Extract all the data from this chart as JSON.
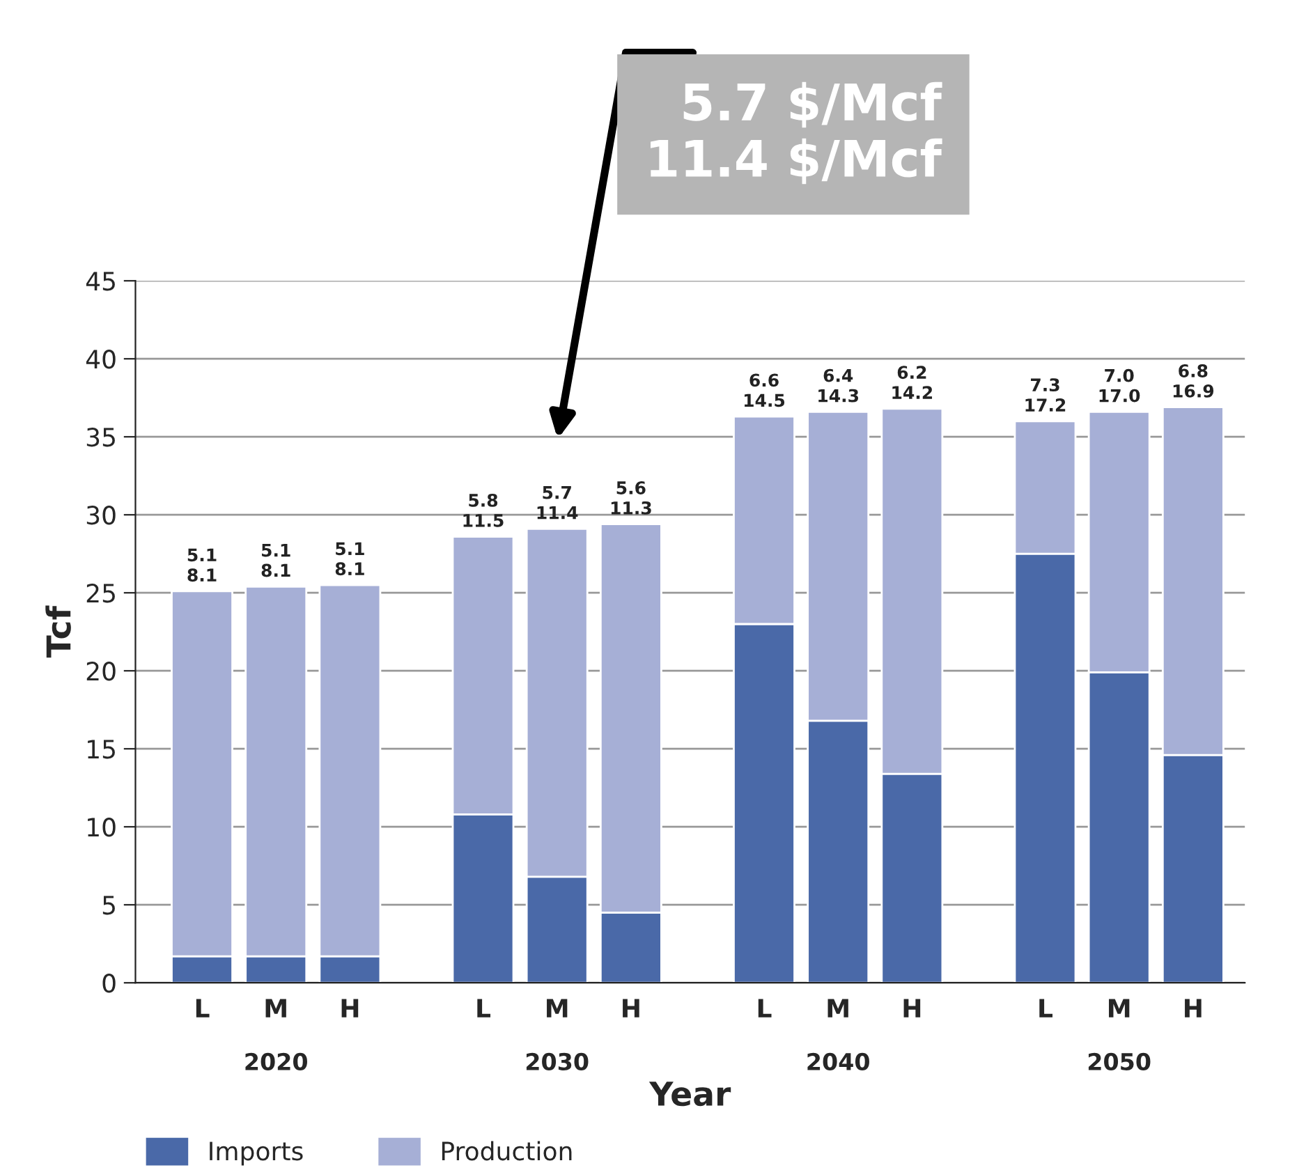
{
  "chart_data": {
    "type": "bar",
    "stacked": true,
    "categories": [
      "L",
      "M",
      "H",
      "L",
      "M",
      "H",
      "L",
      "M",
      "H",
      "L",
      "M",
      "H"
    ],
    "series": [
      {
        "name": "Imports",
        "color": "#4a69a8",
        "values": [
          1.7,
          1.7,
          1.7,
          10.8,
          6.8,
          4.5,
          23.0,
          16.8,
          13.4,
          27.5,
          19.9,
          14.6
        ]
      },
      {
        "name": "Production",
        "color": "#a6afd6",
        "values": [
          23.4,
          23.7,
          23.8,
          17.8,
          22.3,
          24.9,
          13.3,
          19.8,
          23.4,
          8.5,
          16.7,
          22.3
        ]
      }
    ],
    "xlabel": "Year",
    "ylabel": "Tcf",
    "ylim": [
      0,
      45
    ],
    "yticks": [
      0,
      5,
      10,
      15,
      20,
      25,
      30,
      35,
      40,
      45
    ],
    "grid": "y",
    "legend": "bottom left",
    "annotations": [
      "5.1\n8.1",
      "5.1\n8.1",
      "5.1\n8.1",
      "5.8\n11.5",
      "5.7\n11.4",
      "5.6\n11.3",
      "6.6\n14.5",
      "6.4\n14.3",
      "6.2\n14.2",
      "7.3\n17.2",
      "7.0\n17.0",
      "6.8\n16.9",
      "2020",
      "2030",
      "2040",
      "2050",
      "5.7 $/Mcf\n11.4 $/Mcf"
    ]
  }
}
